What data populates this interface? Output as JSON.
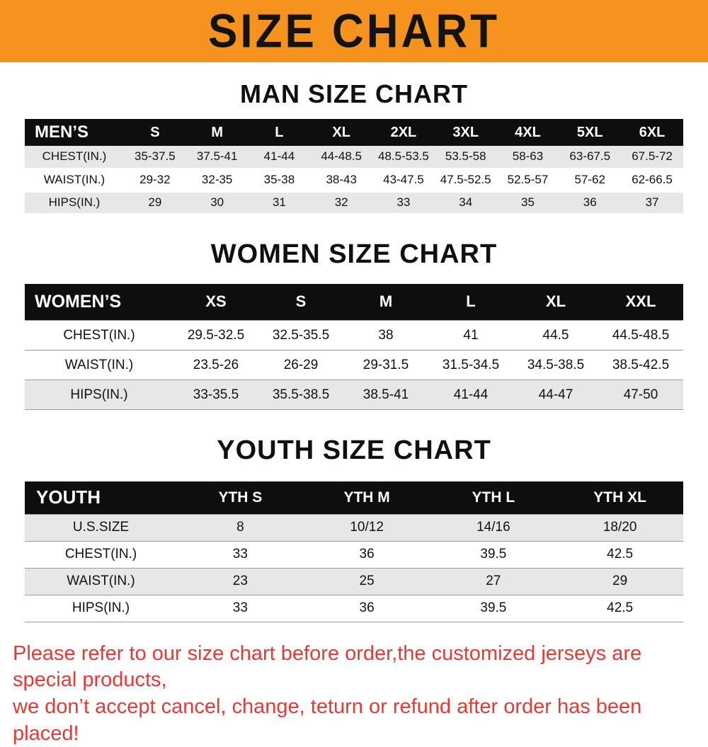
{
  "banner": {
    "title": "SIZE CHART"
  },
  "colors": {
    "orange": "#F6921E",
    "header_black": "#0E0E0E",
    "row_gray": "#E7E7E7",
    "notice_red": "#E23B38"
  },
  "sections": [
    {
      "heading": "MAN SIZE CHART",
      "header_label": "MEN’S",
      "columns": [
        "S",
        "M",
        "L",
        "XL",
        "2XL",
        "3XL",
        "4XL",
        "5XL",
        "6XL"
      ],
      "shading": [
        "gray",
        "white",
        "gray"
      ],
      "rows": [
        {
          "label": "CHEST(IN.)",
          "values": [
            "35-37.5",
            "37.5-41",
            "41-44",
            "44-48.5",
            "48.5-53.5",
            "53.5-58",
            "58-63",
            "63-67.5",
            "67.5-72"
          ]
        },
        {
          "label": "WAIST(IN.)",
          "values": [
            "29-32",
            "32-35",
            "35-38",
            "38-43",
            "43-47.5",
            "47.5-52.5",
            "52.5-57",
            "57-62",
            "62-66.5"
          ]
        },
        {
          "label": "HIPS(IN.)",
          "values": [
            "29",
            "30",
            "31",
            "32",
            "33",
            "34",
            "35",
            "36",
            "37"
          ]
        }
      ]
    },
    {
      "heading": "WOMEN SIZE CHART",
      "header_label": "WOMEN’S",
      "columns": [
        "XS",
        "S",
        "M",
        "L",
        "XL",
        "XXL"
      ],
      "shading": [
        "white",
        "white",
        "gray"
      ],
      "rows": [
        {
          "label": "CHEST(IN.)",
          "values": [
            "29.5-32.5",
            "32.5-35.5",
            "38",
            "41",
            "44.5",
            "44.5-48.5"
          ]
        },
        {
          "label": "WAIST(IN.)",
          "values": [
            "23.5-26",
            "26-29",
            "29-31.5",
            "31.5-34.5",
            "34.5-38.5",
            "38.5-42.5"
          ]
        },
        {
          "label": "HIPS(IN.)",
          "values": [
            "33-35.5",
            "35.5-38.5",
            "38.5-41",
            "41-44",
            "44-47",
            "47-50"
          ]
        }
      ]
    },
    {
      "heading": "YOUTH SIZE CHART",
      "header_label": "YOUTH",
      "columns": [
        "YTH S",
        "YTH M",
        "YTH L",
        "YTH XL"
      ],
      "shading": [
        "gray",
        "white",
        "gray",
        "white"
      ],
      "rows": [
        {
          "label": "U.S.SIZE",
          "values": [
            "8",
            "10/12",
            "14/16",
            "18/20"
          ]
        },
        {
          "label": "CHEST(IN.)",
          "values": [
            "33",
            "36",
            "39.5",
            "42.5"
          ]
        },
        {
          "label": "WAIST(IN.)",
          "values": [
            "23",
            "25",
            "27",
            "29"
          ]
        },
        {
          "label": "HIPS(IN.)",
          "values": [
            "33",
            "36",
            "39.5",
            "42.5"
          ]
        }
      ]
    }
  ],
  "footer": {
    "line1": "Please refer to our size chart before order,the customized jerseys are special products,",
    "line2": "we don’t accept cancel, change, teturn or refund after order has been placed!"
  }
}
